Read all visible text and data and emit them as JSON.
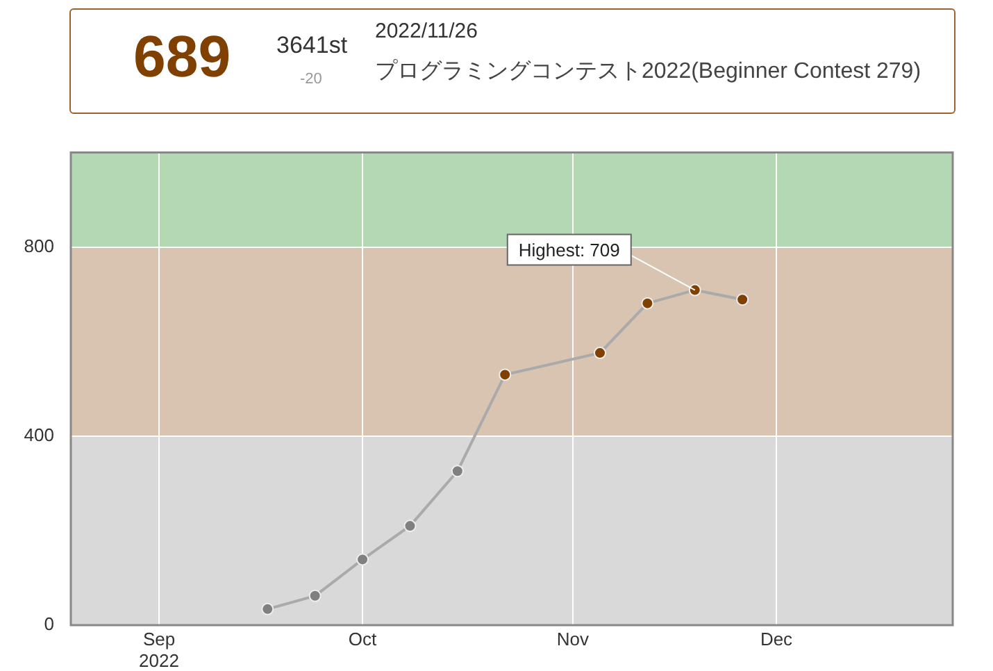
{
  "chart_data": {
    "type": "line",
    "x": [
      "2022-09-17",
      "2022-09-24",
      "2022-10-01",
      "2022-10-08",
      "2022-10-15",
      "2022-10-22",
      "2022-11-05",
      "2022-11-12",
      "2022-11-19",
      "2022-11-26"
    ],
    "series": [
      {
        "color": "#aaaaaa",
        "values": [
          34,
          62,
          139,
          210,
          326,
          530,
          576,
          681,
          709,
          689
        ],
        "colors": [
          "#808080",
          "#808080",
          "#808080",
          "#808080",
          "#808080",
          "#804000",
          "#804000",
          "#804000",
          "#804000",
          "#804000"
        ]
      }
    ],
    "xlim": [
      "2022-08-19",
      "2022-12-27"
    ],
    "xticks": [
      {
        "value": "2022-09-01",
        "label": "Sep 2022"
      },
      {
        "value": "2022-10-01",
        "label": "Oct"
      },
      {
        "value": "2022-11-01",
        "label": "Nov"
      },
      {
        "value": "2022-12-01",
        "label": "Dec"
      }
    ],
    "ylim": [
      0,
      1000
    ],
    "yticks": [
      0,
      400,
      800
    ],
    "bands": [
      {
        "axis": "y",
        "from": 0,
        "to": 400,
        "color": "#d9d9d9"
      },
      {
        "axis": "y",
        "from": 400,
        "to": 800,
        "color": "#d9c4b1"
      },
      {
        "axis": "y",
        "from": 800,
        "to": 1000,
        "color": "#b3d8b3"
      }
    ],
    "annotations": [
      "689",
      "3641st",
      "-20",
      "2022/11/26",
      "プログラミングコンテスト2022(Beginner Contest 279)",
      {
        "text": "Highest: 709",
        "x": "2022-11-19",
        "y": 709
      }
    ],
    "grid": true,
    "legend": false,
    "marker": "circle",
    "line_style": "solid"
  }
}
